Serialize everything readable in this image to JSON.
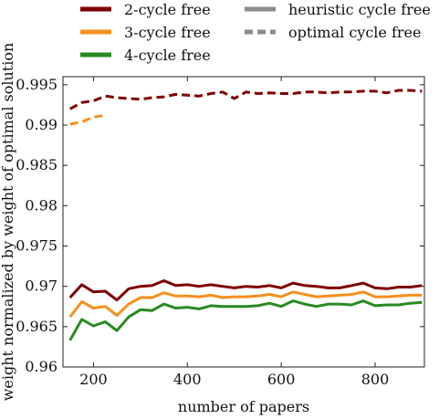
{
  "chart_data": {
    "type": "line",
    "xlabel": "number of papers",
    "ylabel": "weight normalized by weight of optimal solution",
    "xlim": [
      135,
      905
    ],
    "ylim": [
      0.96,
      0.996
    ],
    "xticks": [
      200,
      400,
      600,
      800
    ],
    "yticks": [
      0.96,
      0.965,
      0.97,
      0.975,
      0.98,
      0.985,
      0.99,
      0.995
    ],
    "ytick_labels": [
      "0.96",
      "0.965",
      "0.97",
      "0.975",
      "0.98",
      "0.985",
      "0.99",
      "0.995"
    ],
    "grid": false,
    "legend": {
      "placement": "top",
      "color_entries": [
        {
          "label": "2-cycle free",
          "color": "#7f0000"
        },
        {
          "label": "3-cycle free",
          "color": "#f5901e"
        },
        {
          "label": "4-cycle free",
          "color": "#2a8a22"
        }
      ],
      "style_entries": [
        {
          "label": "heuristic cycle free",
          "style": "solid",
          "color": "#8c8c8c"
        },
        {
          "label": "optimal cycle free",
          "style": "dashed",
          "color": "#8c8c8c"
        }
      ]
    },
    "series": [
      {
        "group": "2-cycle free",
        "style": "dashed",
        "color": "#7f0000",
        "x": [
          150,
          175,
          200,
          225,
          250,
          275,
          300,
          325,
          350,
          375,
          400,
          425,
          450,
          475,
          500,
          525,
          550,
          575,
          600,
          625,
          650,
          675,
          700,
          725,
          750,
          775,
          800,
          825,
          850,
          875,
          900
        ],
        "y": [
          0.992,
          0.9928,
          0.993,
          0.9936,
          0.9934,
          0.9933,
          0.9932,
          0.9934,
          0.9935,
          0.9938,
          0.9937,
          0.9936,
          0.9939,
          0.9941,
          0.9933,
          0.9941,
          0.9939,
          0.994,
          0.9939,
          0.9939,
          0.9941,
          0.9941,
          0.994,
          0.9941,
          0.9941,
          0.9942,
          0.9942,
          0.994,
          0.9943,
          0.9943,
          0.9942
        ]
      },
      {
        "group": "3-cycle free",
        "style": "dashed",
        "color": "#f5901e",
        "x": [
          150,
          175,
          200,
          225
        ],
        "y": [
          0.9901,
          0.9904,
          0.991,
          0.9912
        ]
      },
      {
        "group": "2-cycle free",
        "style": "solid",
        "color": "#7f0000",
        "x": [
          150,
          175,
          200,
          225,
          250,
          275,
          300,
          325,
          350,
          375,
          400,
          425,
          450,
          475,
          500,
          525,
          550,
          575,
          600,
          625,
          650,
          675,
          700,
          725,
          750,
          775,
          800,
          825,
          850,
          875,
          900
        ],
        "y": [
          0.9686,
          0.9702,
          0.9693,
          0.9694,
          0.9683,
          0.9697,
          0.97,
          0.9701,
          0.9707,
          0.9701,
          0.9702,
          0.97,
          0.9702,
          0.97,
          0.9698,
          0.97,
          0.9699,
          0.9701,
          0.9698,
          0.9704,
          0.9701,
          0.97,
          0.9698,
          0.9698,
          0.9701,
          0.9704,
          0.9698,
          0.9697,
          0.9699,
          0.9699,
          0.9701
        ]
      },
      {
        "group": "3-cycle free",
        "style": "solid",
        "color": "#f5901e",
        "x": [
          150,
          175,
          200,
          225,
          250,
          275,
          300,
          325,
          350,
          375,
          400,
          425,
          450,
          475,
          500,
          525,
          550,
          575,
          600,
          625,
          650,
          675,
          700,
          725,
          750,
          775,
          800,
          825,
          850,
          875,
          900
        ],
        "y": [
          0.9662,
          0.9681,
          0.9673,
          0.9675,
          0.9664,
          0.9678,
          0.9686,
          0.9686,
          0.9692,
          0.9688,
          0.9688,
          0.9687,
          0.9689,
          0.9686,
          0.9687,
          0.9687,
          0.9688,
          0.969,
          0.9687,
          0.9693,
          0.969,
          0.9687,
          0.9688,
          0.9689,
          0.969,
          0.9693,
          0.9687,
          0.9687,
          0.9688,
          0.9689,
          0.9689
        ]
      },
      {
        "group": "4-cycle free",
        "style": "solid",
        "color": "#2a8a22",
        "x": [
          150,
          175,
          200,
          225,
          250,
          275,
          300,
          325,
          350,
          375,
          400,
          425,
          450,
          475,
          500,
          525,
          550,
          575,
          600,
          625,
          650,
          675,
          700,
          725,
          750,
          775,
          800,
          825,
          850,
          875,
          900
        ],
        "y": [
          0.9633,
          0.9659,
          0.9651,
          0.9656,
          0.9645,
          0.9662,
          0.9671,
          0.967,
          0.9678,
          0.9673,
          0.9674,
          0.9672,
          0.9676,
          0.9675,
          0.9675,
          0.9675,
          0.9676,
          0.9679,
          0.9675,
          0.9682,
          0.9678,
          0.9675,
          0.9678,
          0.9678,
          0.9677,
          0.9682,
          0.9676,
          0.9677,
          0.9677,
          0.9679,
          0.968
        ]
      }
    ]
  }
}
